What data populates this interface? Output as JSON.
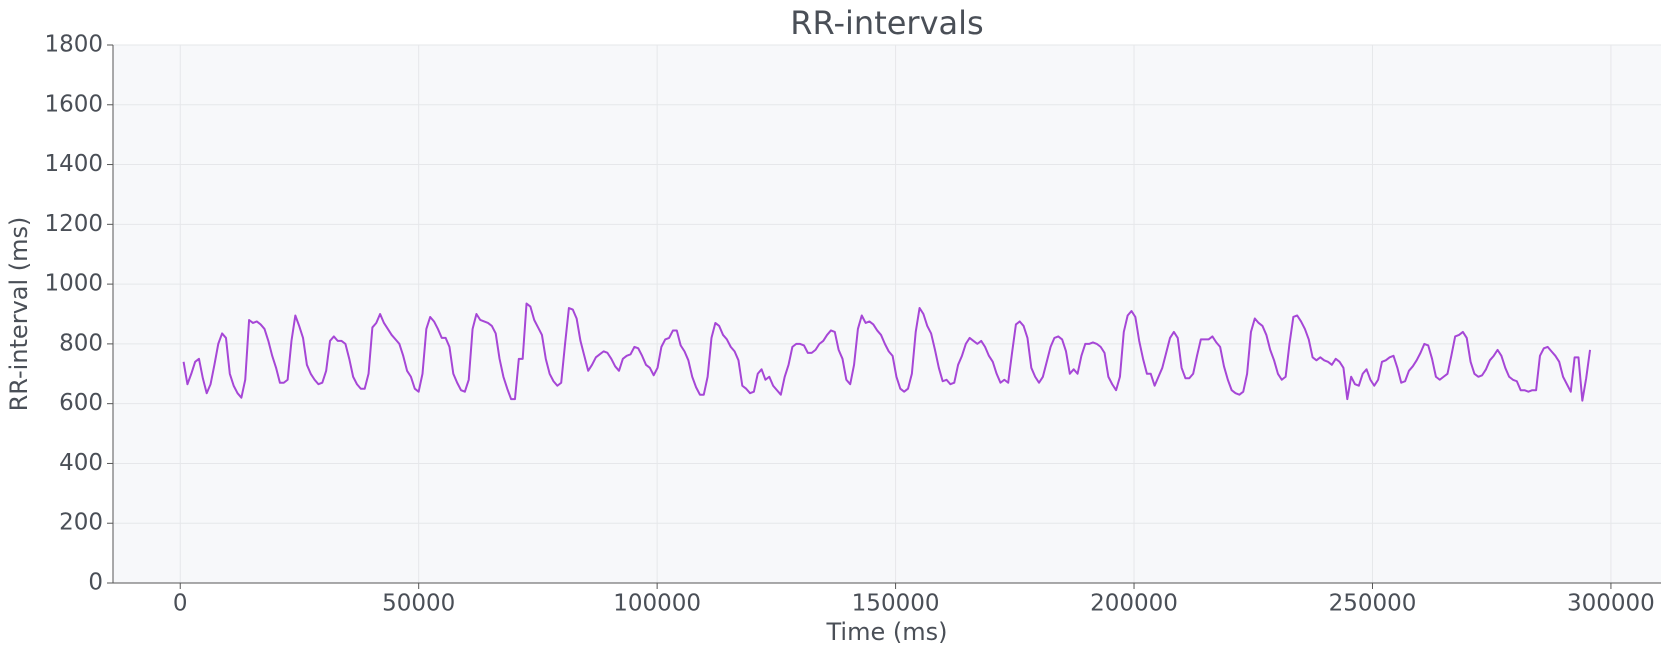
{
  "chart_data": {
    "type": "line",
    "title": "RR-intervals",
    "xlabel": "Time (ms)",
    "ylabel": "RR-interval (ms)",
    "color": "#a647d6",
    "grid": true,
    "xlim": [
      -14100,
      310500
    ],
    "ylim": [
      0,
      1800
    ],
    "xticks": [
      0,
      50000,
      100000,
      150000,
      200000,
      250000,
      300000
    ],
    "yticks": [
      0,
      200,
      400,
      600,
      800,
      1000,
      1200,
      1400,
      1600,
      1800
    ],
    "x": [
      700,
      1508,
      2316,
      3124,
      3932,
      4740,
      5548,
      6356,
      7164,
      7972,
      8780,
      9588,
      10396,
      11204,
      12012,
      12820,
      13628,
      14436,
      15244,
      16052,
      16860,
      17668,
      18476,
      19284,
      20092,
      20900,
      21708,
      22516,
      23324,
      24132,
      24940,
      25748,
      26556,
      27364,
      28172,
      28980,
      29788,
      30596,
      31404,
      32212,
      33020,
      33828,
      34636,
      35444,
      36252,
      37060,
      37868,
      38676,
      39484,
      40292,
      41100,
      41908,
      42716,
      43524,
      44332,
      45140,
      45948,
      46756,
      47564,
      48372,
      49180,
      49988,
      50796,
      51604,
      52412,
      53220,
      54028,
      54836,
      55644,
      56452,
      57260,
      58068,
      58876,
      59684,
      60492,
      61300,
      62108,
      62916,
      63724,
      64532,
      65340,
      66148,
      66956,
      67764,
      68572,
      69380,
      70188,
      70996,
      71804,
      72612,
      73420,
      74228,
      75036,
      75844,
      76652,
      77460,
      78268,
      79076,
      79884,
      80692,
      81500,
      82308,
      83116,
      83924,
      84732,
      85540,
      86348,
      87156,
      87964,
      88772,
      89580,
      90388,
      91196,
      92004,
      92812,
      93620,
      94428,
      95236,
      96044,
      96852,
      97660,
      98468,
      99276,
      100084,
      100892,
      101700,
      102508,
      103316,
      104124,
      104932,
      105740,
      106548,
      107356,
      108164,
      108972,
      109780,
      110588,
      111396,
      112204,
      113012,
      113820,
      114628,
      115436,
      116244,
      117052,
      117860,
      118668,
      119476,
      120284,
      121092,
      121900,
      122708,
      123516,
      124324,
      125132,
      125940,
      126748,
      127556,
      128364,
      129172,
      129980,
      130788,
      131596,
      132404,
      133212,
      134020,
      134828,
      135636,
      136444,
      137252,
      138060,
      138868,
      139676,
      140484,
      141292,
      142100,
      142908,
      143716,
      144524,
      145332,
      146140,
      146948,
      147756,
      148564,
      149372,
      150180,
      150988,
      151796,
      152604,
      153412,
      154220,
      155028,
      155836,
      156644,
      157452,
      158260,
      159068,
      159876,
      160684,
      161492,
      162300,
      163108,
      163916,
      164724,
      165532,
      166340,
      167148,
      167956,
      168764,
      169572,
      170380,
      171188,
      171996,
      172804,
      173612,
      174420,
      175228,
      176036,
      176844,
      177652,
      178460,
      179268,
      180076,
      180884,
      181692,
      182500,
      183308,
      184116,
      184924,
      185732,
      186540,
      187348,
      188156,
      188964,
      189772,
      190580,
      191388,
      192196,
      193004,
      193812,
      194620,
      195428,
      196236,
      197044,
      197852,
      198660,
      199468,
      200276,
      201084,
      201892,
      202700,
      203508,
      204316,
      205124,
      205932,
      206740,
      207548,
      208356,
      209164,
      209972,
      210780,
      211588,
      212396,
      213204,
      214012,
      214820,
      215628,
      216436,
      217244,
      218052,
      218860,
      219668,
      220476,
      221284,
      222092,
      222900,
      223708,
      224516,
      225324,
      226132,
      226940,
      227748,
      228556,
      229364,
      230172,
      230980,
      231788,
      232596,
      233404,
      234212,
      235020,
      235828,
      236636,
      237444,
      238252,
      239060,
      239868,
      240676,
      241484,
      242292,
      243100,
      243908,
      244716,
      245524,
      246332,
      247140,
      247948,
      248756,
      249564,
      250372,
      251180,
      251988,
      252796,
      253604,
      254412,
      255220,
      256028,
      256836,
      257644,
      258452,
      259260,
      260068,
      260876,
      261684,
      262492,
      263300,
      264108,
      264916,
      265724,
      266532,
      267340,
      268148,
      268956,
      269764,
      270572,
      271380,
      272188,
      272996,
      273804,
      274612,
      275420,
      276228,
      277036,
      277844,
      278652,
      279460,
      280268,
      281076,
      281884,
      282692,
      283500,
      284308,
      285116,
      285924,
      286732,
      287540,
      288348,
      289156,
      289964,
      290772,
      291580,
      292388,
      293196,
      294004,
      294812,
      295620
    ],
    "values": [
      740,
      665,
      700,
      740,
      750,
      685,
      635,
      665,
      730,
      800,
      835,
      820,
      700,
      660,
      635,
      620,
      680,
      880,
      870,
      875,
      865,
      850,
      810,
      760,
      720,
      670,
      670,
      680,
      810,
      895,
      860,
      820,
      730,
      700,
      680,
      665,
      670,
      710,
      810,
      825,
      810,
      810,
      800,
      750,
      690,
      665,
      650,
      650,
      700,
      855,
      870,
      900,
      870,
      850,
      830,
      815,
      800,
      760,
      710,
      690,
      650,
      640,
      700,
      850,
      890,
      875,
      850,
      820,
      820,
      790,
      700,
      670,
      645,
      640,
      680,
      850,
      900,
      880,
      875,
      870,
      860,
      835,
      750,
      690,
      650,
      615,
      615,
      750,
      750,
      935,
      925,
      880,
      855,
      830,
      750,
      700,
      675,
      660,
      670,
      800,
      920,
      915,
      885,
      810,
      760,
      710,
      730,
      755,
      765,
      775,
      770,
      750,
      725,
      710,
      750,
      760,
      765,
      790,
      785,
      760,
      730,
      720,
      695,
      720,
      790,
      815,
      820,
      845,
      845,
      795,
      775,
      745,
      690,
      655,
      630,
      630,
      690,
      820,
      870,
      860,
      830,
      815,
      790,
      775,
      745,
      660,
      650,
      635,
      640,
      700,
      715,
      680,
      690,
      660,
      645,
      630,
      690,
      730,
      790,
      800,
      800,
      795,
      770,
      770,
      780,
      800,
      810,
      830,
      845,
      840,
      780,
      750,
      680,
      665,
      730,
      850,
      895,
      870,
      875,
      865,
      845,
      830,
      800,
      775,
      760,
      690,
      650,
      640,
      650,
      700,
      840,
      920,
      900,
      860,
      835,
      780,
      720,
      675,
      680,
      665,
      670,
      730,
      760,
      800,
      820,
      810,
      800,
      810,
      790,
      760,
      740,
      700,
      670,
      680,
      670,
      770,
      865,
      875,
      860,
      820,
      720,
      690,
      670,
      690,
      740,
      790,
      820,
      825,
      815,
      775,
      700,
      715,
      700,
      760,
      800,
      800,
      805,
      800,
      790,
      770,
      690,
      665,
      645,
      690,
      840,
      895,
      910,
      890,
      810,
      750,
      700,
      700,
      660,
      690,
      720,
      770,
      820,
      840,
      820,
      720,
      685,
      685,
      700,
      760,
      815,
      815,
      815,
      825,
      805,
      790,
      725,
      680,
      645,
      635,
      630,
      640,
      700,
      840,
      885,
      870,
      860,
      830,
      780,
      745,
      700,
      680,
      690,
      800,
      890,
      895,
      875,
      850,
      815,
      755,
      745,
      755,
      745,
      740,
      730,
      750,
      740,
      720,
      615,
      690,
      665,
      660,
      700,
      715,
      680,
      660,
      680,
      740,
      745,
      755,
      760,
      720,
      670,
      675,
      710,
      725,
      745,
      770,
      800,
      795,
      750,
      690,
      680,
      690,
      700,
      760,
      825,
      830,
      840,
      820,
      740,
      700,
      690,
      695,
      715,
      745,
      760,
      780,
      760,
      720,
      690,
      680,
      675,
      645,
      645,
      640,
      645,
      645,
      760,
      785,
      790,
      775,
      760,
      740,
      690,
      665,
      640,
      755,
      755,
      610,
      685,
      780
    ]
  }
}
